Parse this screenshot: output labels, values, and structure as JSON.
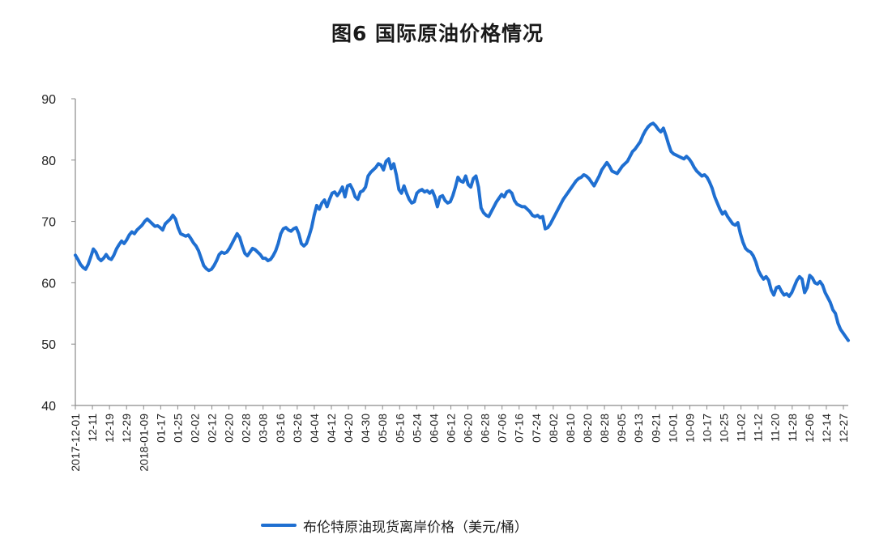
{
  "chart_data": {
    "type": "line",
    "title": "图6  国际原油价格情况",
    "xlabel": "",
    "ylabel": "",
    "ylim": [
      40,
      90
    ],
    "yticks": [
      40,
      50,
      60,
      70,
      80,
      90
    ],
    "x_tick_labels": [
      "2017-12-01",
      "12-11",
      "12-19",
      "12-29",
      "2018-01-09",
      "01-17",
      "01-25",
      "02-02",
      "02-12",
      "02-20",
      "02-28",
      "03-08",
      "03-16",
      "03-26",
      "04-04",
      "04-12",
      "04-20",
      "04-30",
      "05-08",
      "05-16",
      "05-24",
      "06-04",
      "06-12",
      "06-20",
      "06-28",
      "07-06",
      "07-16",
      "07-24",
      "08-02",
      "08-10",
      "08-20",
      "08-28",
      "09-05",
      "09-13",
      "09-21",
      "10-01",
      "10-09",
      "10-17",
      "10-25",
      "11-02",
      "11-12",
      "11-20",
      "11-28",
      "12-06",
      "12-14",
      "12-27"
    ],
    "grid": false,
    "legend_position": "bottom",
    "series": [
      {
        "name": "布伦特原油现货离岸价格（美元/桶）",
        "color": "#1f6fd1",
        "values": [
          64.5,
          63.8,
          63.0,
          62.5,
          62.2,
          63.0,
          64.2,
          65.5,
          65.0,
          64.0,
          63.6,
          64.0,
          64.6,
          64.0,
          63.8,
          64.5,
          65.5,
          66.2,
          66.8,
          66.4,
          67.0,
          67.8,
          68.3,
          68.0,
          68.6,
          69.0,
          69.4,
          70.0,
          70.4,
          70.0,
          69.6,
          69.2,
          69.3,
          69.0,
          68.6,
          69.6,
          70.0,
          70.4,
          71.0,
          70.4,
          69.0,
          68.0,
          67.8,
          67.6,
          67.8,
          67.2,
          66.5,
          66.0,
          65.2,
          64.0,
          62.8,
          62.3,
          62.0,
          62.2,
          62.8,
          63.6,
          64.6,
          65.0,
          64.8,
          65.0,
          65.6,
          66.4,
          67.2,
          68.0,
          67.4,
          66.0,
          64.8,
          64.4,
          65.0,
          65.6,
          65.4,
          65.0,
          64.6,
          64.0,
          64.0,
          63.6,
          63.8,
          64.4,
          65.2,
          66.4,
          68.0,
          68.8,
          69.0,
          68.6,
          68.4,
          68.8,
          69.0,
          68.0,
          66.4,
          66.0,
          66.4,
          67.6,
          69.0,
          71.0,
          72.6,
          72.0,
          73.0,
          73.5,
          72.4,
          73.6,
          74.6,
          74.8,
          74.2,
          74.8,
          75.6,
          74.0,
          75.8,
          76.0,
          75.2,
          74.0,
          73.6,
          74.8,
          75.0,
          75.6,
          77.4,
          78.0,
          78.4,
          78.8,
          79.4,
          79.2,
          78.4,
          79.8,
          80.2,
          78.6,
          79.4,
          77.6,
          75.2,
          74.6,
          75.8,
          74.6,
          73.6,
          73.0,
          73.2,
          74.6,
          75.0,
          75.2,
          74.8,
          75.0,
          74.6,
          75.0,
          74.0,
          72.4,
          74.0,
          74.2,
          73.4,
          73.0,
          73.2,
          74.2,
          75.6,
          77.2,
          76.6,
          76.4,
          77.4,
          76.0,
          75.6,
          77.0,
          77.4,
          75.6,
          72.2,
          71.4,
          71.0,
          70.8,
          71.6,
          72.4,
          73.2,
          73.8,
          74.4,
          74.0,
          74.8,
          75.0,
          74.6,
          73.4,
          72.8,
          72.6,
          72.4,
          72.4,
          72.0,
          71.6,
          71.0,
          70.8,
          71.0,
          70.6,
          70.8,
          68.8,
          69.0,
          69.6,
          70.4,
          71.2,
          72.0,
          72.8,
          73.6,
          74.2,
          74.8,
          75.4,
          76.0,
          76.6,
          77.0,
          77.2,
          77.6,
          77.4,
          77.0,
          76.4,
          75.8,
          76.6,
          77.4,
          78.4,
          79.0,
          79.6,
          79.0,
          78.2,
          78.0,
          77.8,
          78.4,
          79.0,
          79.4,
          79.8,
          80.6,
          81.4,
          81.8,
          82.4,
          83.0,
          84.0,
          84.8,
          85.4,
          85.8,
          86.0,
          85.6,
          85.0,
          84.6,
          85.2,
          84.0,
          82.6,
          81.4,
          81.0,
          80.8,
          80.6,
          80.4,
          80.2,
          80.6,
          80.2,
          79.6,
          78.8,
          78.2,
          77.8,
          77.4,
          77.6,
          77.2,
          76.4,
          75.4,
          74.0,
          73.0,
          72.0,
          71.2,
          71.6,
          70.8,
          70.2,
          69.6,
          69.4,
          69.8,
          68.0,
          66.6,
          65.6,
          65.2,
          65.0,
          64.4,
          63.4,
          62.0,
          61.2,
          60.6,
          61.0,
          60.4,
          58.8,
          58.0,
          59.2,
          59.4,
          58.6,
          58.0,
          58.2,
          57.8,
          58.4,
          59.4,
          60.4,
          61.0,
          60.6,
          58.4,
          59.2,
          61.2,
          60.8,
          60.0,
          59.8,
          60.2,
          59.6,
          58.4,
          57.6,
          56.8,
          55.6,
          55.0,
          53.4,
          52.4,
          51.8,
          51.2,
          50.6
        ]
      }
    ]
  }
}
